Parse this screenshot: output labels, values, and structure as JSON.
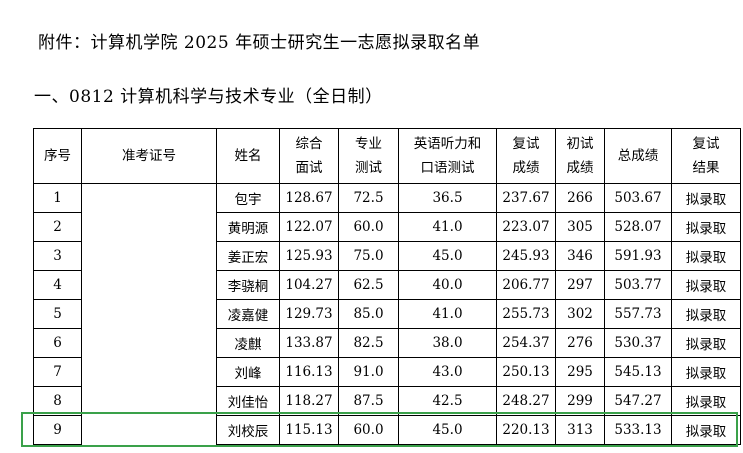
{
  "doc": {
    "title": "附件：计算机学院 2025 年硕士研究生一志愿拟录取名单",
    "section": "一、0812 计算机科学与技术专业（全日制）"
  },
  "table": {
    "headers": [
      [
        "序号"
      ],
      [
        "准考证号"
      ],
      [
        "姓名"
      ],
      [
        "综合",
        "面试"
      ],
      [
        "专业",
        "测试"
      ],
      [
        "英语听力和",
        "口语测试"
      ],
      [
        "复试",
        "成绩"
      ],
      [
        "初试",
        "成绩"
      ],
      [
        "总成绩"
      ],
      [
        "复试",
        "结果"
      ]
    ],
    "rows": [
      {
        "no": "1",
        "id": "",
        "name": "包宇",
        "interview": "128.67",
        "major": "72.5",
        "english": "36.5",
        "retest": "237.67",
        "prelim": "266",
        "total": "503.67",
        "result": "拟录取"
      },
      {
        "no": "2",
        "id": "",
        "name": "黄明源",
        "interview": "122.07",
        "major": "60.0",
        "english": "41.0",
        "retest": "223.07",
        "prelim": "305",
        "total": "528.07",
        "result": "拟录取"
      },
      {
        "no": "3",
        "id": "",
        "name": "姜正宏",
        "interview": "125.93",
        "major": "75.0",
        "english": "45.0",
        "retest": "245.93",
        "prelim": "346",
        "total": "591.93",
        "result": "拟录取"
      },
      {
        "no": "4",
        "id": "",
        "name": "李骁桐",
        "interview": "104.27",
        "major": "62.5",
        "english": "40.0",
        "retest": "206.77",
        "prelim": "297",
        "total": "503.77",
        "result": "拟录取"
      },
      {
        "no": "5",
        "id": "",
        "name": "凌嘉健",
        "interview": "129.73",
        "major": "85.0",
        "english": "41.0",
        "retest": "255.73",
        "prelim": "302",
        "total": "557.73",
        "result": "拟录取"
      },
      {
        "no": "6",
        "id": "",
        "name": "凌麒",
        "interview": "133.87",
        "major": "82.5",
        "english": "38.0",
        "retest": "254.37",
        "prelim": "276",
        "total": "530.37",
        "result": "拟录取"
      },
      {
        "no": "7",
        "id": "",
        "name": "刘峰",
        "interview": "116.13",
        "major": "91.0",
        "english": "43.0",
        "retest": "250.13",
        "prelim": "295",
        "total": "545.13",
        "result": "拟录取"
      },
      {
        "no": "8",
        "id": "",
        "name": "刘佳怡",
        "interview": "118.27",
        "major": "87.5",
        "english": "42.5",
        "retest": "248.27",
        "prelim": "299",
        "total": "547.27",
        "result": "拟录取"
      },
      {
        "no": "9",
        "id": "",
        "name": "刘校辰",
        "interview": "115.13",
        "major": "60.0",
        "english": "45.0",
        "retest": "220.13",
        "prelim": "313",
        "total": "533.13",
        "result": "拟录取"
      }
    ]
  },
  "highlight_color": "#3aa14a"
}
